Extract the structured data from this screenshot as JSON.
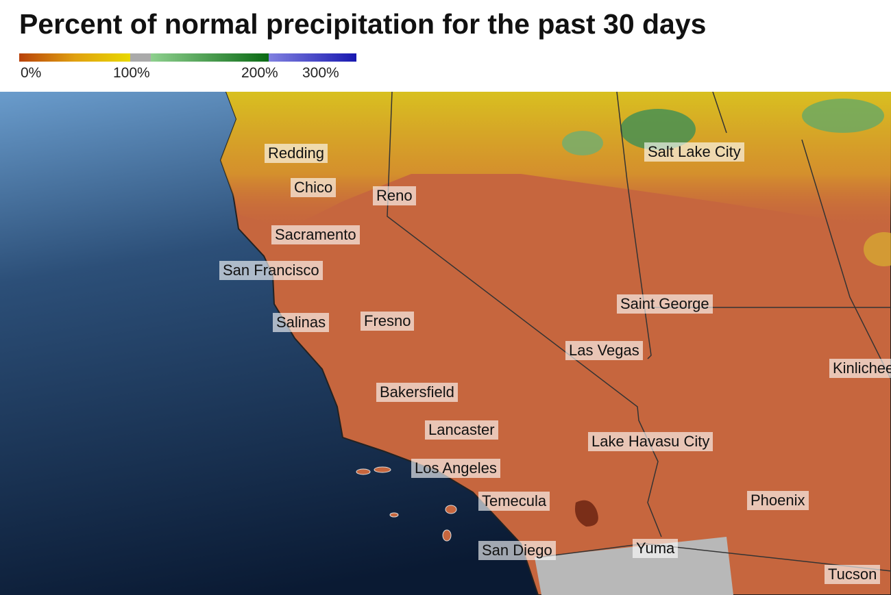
{
  "title": "Percent of normal precipitation for the past 30 days",
  "legend": {
    "labels": [
      "0%",
      "100%",
      "200%",
      "300%"
    ]
  },
  "cities": [
    "Redding",
    "Chico",
    "Reno",
    "Sacramento",
    "San Francisco",
    "Salinas",
    "Fresno",
    "Bakersfield",
    "Lancaster",
    "Los Angeles",
    "Temecula",
    "San Diego",
    "Yuma",
    "Lake Havasu City",
    "Las Vegas",
    "Saint George",
    "Salt Lake City",
    "Kinlichee",
    "Phoenix",
    "Tucson"
  ]
}
